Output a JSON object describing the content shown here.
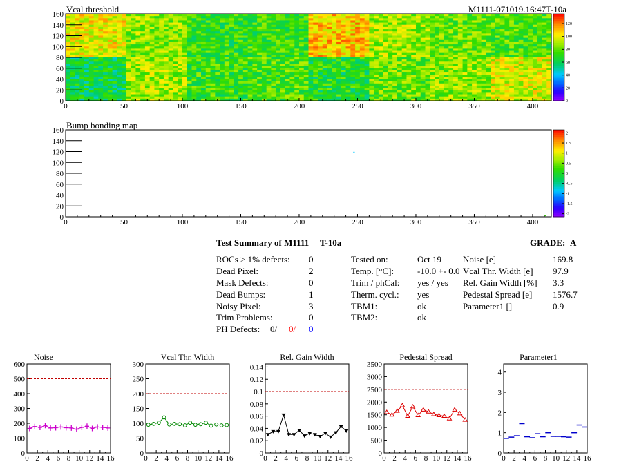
{
  "vcal_map": {
    "title": "Vcal threshold",
    "id_label": "M1111-071019.16:47T-10a",
    "x_ticks": [
      "0",
      "50",
      "100",
      "150",
      "200",
      "250",
      "300",
      "350",
      "400"
    ],
    "x_range": [
      0,
      416
    ],
    "y_ticks": [
      "0",
      "20",
      "40",
      "60",
      "80",
      "100",
      "120",
      "140",
      "160"
    ],
    "y_range": [
      0,
      160
    ],
    "palette_ticks": [
      "0",
      "20",
      "40",
      "60",
      "80",
      "100",
      "120"
    ],
    "palette_range": [
      0,
      135
    ],
    "roc_levels_top": [
      100,
      85,
      70,
      72,
      108,
      88,
      80,
      75
    ],
    "roc_levels_bottom": [
      62,
      88,
      72,
      75,
      68,
      80,
      85,
      95
    ]
  },
  "bump_map": {
    "title": "Bump bonding map",
    "x_ticks": [
      "0",
      "50",
      "100",
      "150",
      "200",
      "250",
      "300",
      "350",
      "400"
    ],
    "y_ticks": [
      "0",
      "20",
      "40",
      "60",
      "80",
      "100",
      "120",
      "140",
      "160"
    ],
    "palette_ticks": [
      "2",
      "1.5",
      "1",
      "0.5",
      "0",
      "-0.5",
      "-1",
      "-1.5",
      "-2"
    ],
    "points": [
      {
        "x": 247,
        "y": 119
      },
      {
        "x": 411,
        "y": 2
      }
    ]
  },
  "summary": {
    "heading": "Test Summary of M1111",
    "temp_tag": "T-10a",
    "grade_label": "GRADE:",
    "grade": "A",
    "defects": [
      {
        "label": "ROCs > 1% defects:",
        "value": "0"
      },
      {
        "label": "Dead Pixel:",
        "value": "2"
      },
      {
        "label": "Mask Defects:",
        "value": "0"
      },
      {
        "label": "Dead Bumps:",
        "value": "1"
      },
      {
        "label": "Noisy Pixel:",
        "value": "3"
      },
      {
        "label": "Trim Problems:",
        "value": "0"
      }
    ],
    "ph_defects": {
      "label": "PH Defects:",
      "v1": "0/",
      "v2": "0/",
      "v3": "0"
    },
    "conditions": [
      {
        "label": "Tested on:",
        "value": "Oct 19"
      },
      {
        "label": "Temp. [°C]:",
        "value": "-10.0 +- 0.0"
      },
      {
        "label": "Trim / phCal:",
        "value": "yes / yes"
      },
      {
        "label": "Therm. cycl.:",
        "value": "yes"
      },
      {
        "label": "TBM1:",
        "value": "ok"
      },
      {
        "label": "TBM2:",
        "value": "ok"
      }
    ],
    "results": [
      {
        "label": "Noise [e]",
        "value": "169.8"
      },
      {
        "label": "Vcal Thr. Width [e]",
        "value": "97.9"
      },
      {
        "label": "Rel. Gain Width [%]",
        "value": "3.3"
      },
      {
        "label": "Pedestal Spread [e]",
        "value": "1576.7"
      },
      {
        "label": "Parameter1 []",
        "value": "0.9"
      }
    ]
  },
  "colors": {
    "ph_v2": "#ff0000",
    "ph_v3": "#0000ff",
    "limit_line": "#c00000"
  },
  "chart_data": [
    {
      "type": "line",
      "title": "Noise",
      "color": "#cc00cc",
      "marker": "cross",
      "x": [
        0,
        1,
        2,
        3,
        4,
        5,
        6,
        7,
        8,
        9,
        10,
        11,
        12,
        13,
        14,
        15
      ],
      "values": [
        165,
        178,
        172,
        185,
        168,
        170,
        175,
        170,
        168,
        160,
        172,
        180,
        165,
        175,
        172,
        168
      ],
      "ylim": [
        0,
        600
      ],
      "y_ticks": [
        0,
        100,
        200,
        300,
        400,
        500,
        600
      ],
      "limit": 500
    },
    {
      "type": "line",
      "title": "Vcal Thr. Width",
      "color": "#008800",
      "marker": "circle",
      "x": [
        0,
        1,
        2,
        3,
        4,
        5,
        6,
        7,
        8,
        9,
        10,
        11,
        12,
        13,
        14,
        15
      ],
      "values": [
        95,
        98,
        102,
        120,
        96,
        98,
        97,
        93,
        102,
        95,
        97,
        102,
        92,
        96,
        93,
        94
      ],
      "ylim": [
        0,
        300
      ],
      "y_ticks": [
        0,
        50,
        100,
        150,
        200,
        250,
        300
      ],
      "limit": 200
    },
    {
      "type": "line",
      "title": "Rel. Gain Width",
      "color": "#000000",
      "marker": "triangle-down",
      "x": [
        0,
        1,
        2,
        3,
        4,
        5,
        6,
        7,
        8,
        9,
        10,
        11,
        12,
        13,
        14,
        15
      ],
      "values": [
        0.03,
        0.035,
        0.035,
        0.062,
        0.03,
        0.03,
        0.037,
        0.028,
        0.032,
        0.03,
        0.027,
        0.032,
        0.026,
        0.033,
        0.043,
        0.036
      ],
      "ylim": [
        0,
        0.145
      ],
      "y_ticks": [
        0,
        0.02,
        0.04,
        0.06,
        0.08,
        0.1,
        0.12,
        0.14
      ],
      "y_tick_labels": [
        "0",
        "0.02",
        "0.04",
        "0.06",
        "0.08",
        "0.1",
        "0.12",
        "0.14"
      ],
      "limit": 0.1
    },
    {
      "type": "line",
      "title": "Pedestal Spread",
      "color": "#dd0000",
      "marker": "triangle-up",
      "x": [
        0,
        1,
        2,
        3,
        4,
        5,
        6,
        7,
        8,
        9,
        10,
        11,
        12,
        13,
        14,
        15
      ],
      "values": [
        1600,
        1500,
        1650,
        1870,
        1450,
        1820,
        1480,
        1700,
        1620,
        1520,
        1480,
        1450,
        1350,
        1700,
        1550,
        1300
      ],
      "ylim": [
        0,
        3500
      ],
      "y_ticks": [
        0,
        500,
        1000,
        1500,
        2000,
        2500,
        3000,
        3500
      ],
      "limit": 2500
    },
    {
      "type": "line",
      "title": "Parameter1",
      "color": "#0000cc",
      "marker": "hline",
      "x": [
        0,
        1,
        2,
        3,
        4,
        5,
        6,
        7,
        8,
        9,
        10,
        11,
        12,
        13,
        14,
        15
      ],
      "values": [
        0.72,
        0.78,
        0.85,
        1.45,
        0.8,
        0.75,
        0.95,
        0.8,
        1.0,
        0.82,
        0.82,
        0.8,
        0.78,
        1.0,
        1.38,
        1.28
      ],
      "ylim": [
        0,
        4.4
      ],
      "y_ticks": [
        0,
        1,
        2,
        3,
        4
      ]
    }
  ]
}
